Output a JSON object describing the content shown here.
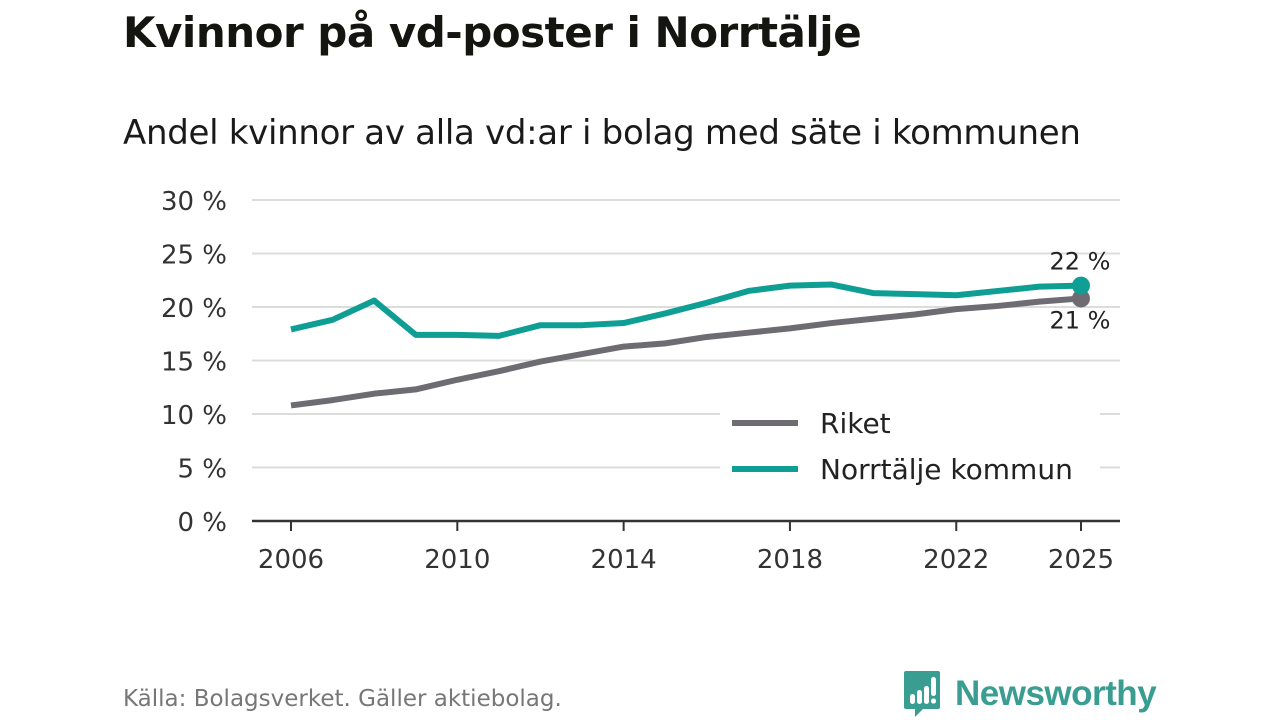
{
  "title": "Kvinnor på vd-poster i Norrtälje",
  "subtitle": "Andel kvinnor av alla vd:ar i bolag med säte i kommunen",
  "source": "Källa: Bolagsverket. Gäller aktiebolag.",
  "logo": "Newsworthy",
  "colors": {
    "riket": "#6e6c72",
    "norrtalje": "#0f9e94",
    "grid": "#dcdcdc",
    "logo": "#3a9d91"
  },
  "chart_data": {
    "type": "line",
    "title": "Kvinnor på vd-poster i Norrtälje",
    "xlabel": "",
    "ylabel": "",
    "ylim": [
      0,
      30
    ],
    "xlim": [
      2006,
      2025
    ],
    "grid": true,
    "legend_position": "bottom-right",
    "yticks": [
      0,
      5,
      10,
      15,
      20,
      25,
      30
    ],
    "ytick_labels": [
      "0 %",
      "5 %",
      "10 %",
      "15 %",
      "20 %",
      "25 %",
      "30 %"
    ],
    "xticks": [
      2006,
      2010,
      2014,
      2018,
      2022,
      2025
    ],
    "xtick_labels": [
      "2006",
      "2010",
      "2014",
      "2018",
      "2022",
      "2025"
    ],
    "x": [
      2006,
      2007,
      2008,
      2009,
      2010,
      2011,
      2012,
      2013,
      2014,
      2015,
      2016,
      2017,
      2018,
      2019,
      2020,
      2021,
      2022,
      2023,
      2024,
      2025
    ],
    "series": [
      {
        "name": "Riket",
        "key": "riket",
        "values": [
          10.8,
          11.3,
          11.9,
          12.3,
          13.2,
          14.0,
          14.9,
          15.6,
          16.3,
          16.6,
          17.2,
          17.6,
          18.0,
          18.5,
          18.9,
          19.3,
          19.8,
          20.1,
          20.5,
          20.8
        ],
        "end_label": "21 %"
      },
      {
        "name": "Norrtälje kommun",
        "key": "norrtalje",
        "values": [
          17.9,
          18.8,
          20.6,
          17.4,
          17.4,
          17.3,
          18.3,
          18.3,
          18.5,
          19.4,
          20.4,
          21.5,
          22.0,
          22.1,
          21.3,
          21.2,
          21.1,
          21.5,
          21.9,
          22.0
        ],
        "end_label": "22 %"
      }
    ]
  }
}
